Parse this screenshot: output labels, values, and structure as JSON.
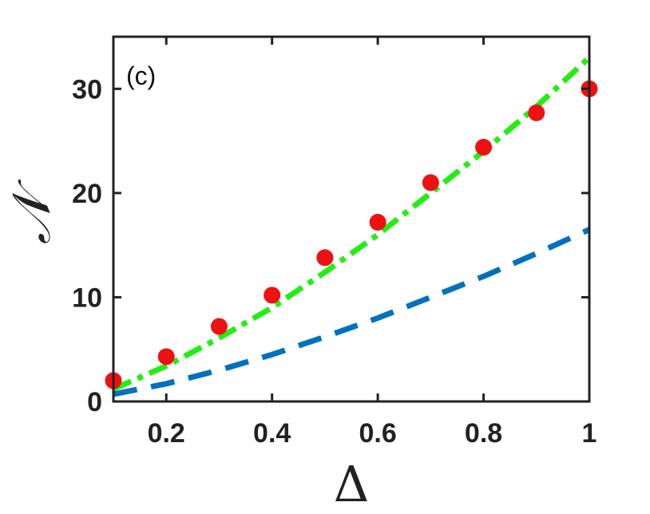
{
  "chart_data": {
    "type": "line",
    "panel_label": "(c)",
    "xlabel": "Δ",
    "ylabel": "𝒩",
    "xlim": [
      0.1,
      1
    ],
    "ylim": [
      0,
      35
    ],
    "xticks": [
      0.2,
      0.4,
      0.6,
      0.8,
      1
    ],
    "xtick_labels": [
      "0.2",
      "0.4",
      "0.6",
      "0.8",
      "1"
    ],
    "yticks": [
      0,
      10,
      20,
      30
    ],
    "ytick_labels": [
      "0",
      "10",
      "20",
      "30"
    ],
    "grid": false,
    "legend": "none",
    "series": [
      {
        "style": "dash-dot",
        "color": "#22ee11",
        "x": [
          0.1,
          0.2,
          0.3,
          0.4,
          0.5,
          0.6,
          0.7,
          0.8,
          0.9,
          1.0
        ],
        "y": [
          1.2,
          3.4,
          6.1,
          9.0,
          12.4,
          16.0,
          20.0,
          24.0,
          28.3,
          33.0
        ]
      },
      {
        "style": "dashed",
        "color": "#0072bd",
        "x": [
          0.1,
          0.2,
          0.3,
          0.4,
          0.5,
          0.6,
          0.7,
          0.8,
          0.9,
          1.0
        ],
        "y": [
          0.7,
          1.7,
          3.0,
          4.5,
          6.2,
          8.0,
          10.0,
          12.0,
          14.2,
          16.5
        ]
      },
      {
        "style": "markers",
        "color": "#ee1111",
        "x": [
          0.1,
          0.2,
          0.3,
          0.4,
          0.5,
          0.6,
          0.7,
          0.8,
          0.9,
          1.0
        ],
        "y": [
          2.0,
          4.3,
          7.2,
          10.2,
          13.8,
          17.2,
          21.0,
          24.4,
          27.7,
          30.0
        ]
      }
    ]
  }
}
